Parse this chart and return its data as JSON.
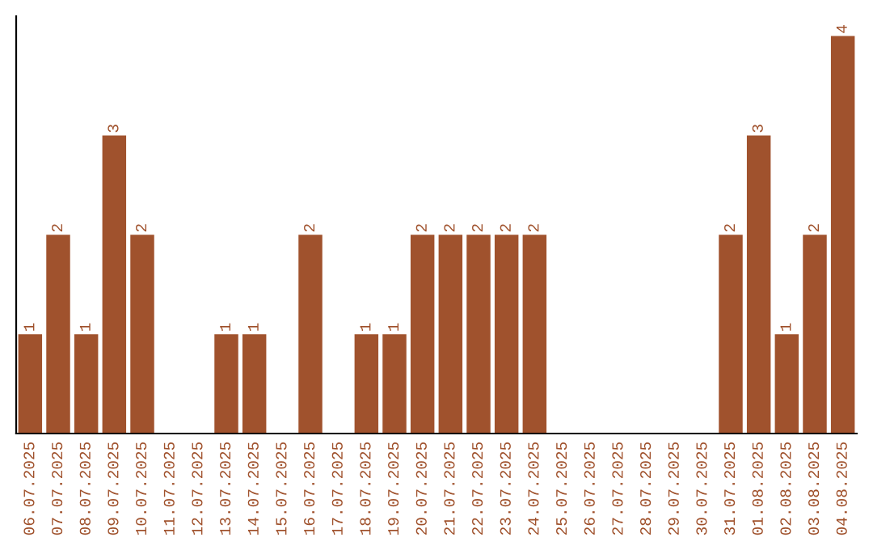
{
  "chart_data": {
    "type": "bar",
    "categories": [
      "06.07.2025",
      "07.07.2025",
      "08.07.2025",
      "09.07.2025",
      "10.07.2025",
      "11.07.2025",
      "12.07.2025",
      "13.07.2025",
      "14.07.2025",
      "15.07.2025",
      "16.07.2025",
      "17.07.2025",
      "18.07.2025",
      "19.07.2025",
      "20.07.2025",
      "21.07.2025",
      "22.07.2025",
      "23.07.2025",
      "24.07.2025",
      "25.07.2025",
      "26.07.2025",
      "27.07.2025",
      "28.07.2025",
      "29.07.2025",
      "30.07.2025",
      "31.07.2025",
      "01.08.2025",
      "02.08.2025",
      "03.08.2025",
      "04.08.2025"
    ],
    "values": [
      1,
      2,
      1,
      3,
      2,
      0,
      0,
      1,
      1,
      0,
      2,
      0,
      1,
      1,
      2,
      2,
      2,
      2,
      2,
      0,
      0,
      0,
      0,
      0,
      0,
      2,
      3,
      1,
      2,
      4
    ],
    "value_labels": [
      "1",
      "2",
      "1",
      "3",
      "2",
      null,
      null,
      "1",
      "1",
      null,
      "2",
      null,
      "1",
      "1",
      "2",
      "2",
      "2",
      "2",
      "2",
      null,
      null,
      null,
      null,
      null,
      null,
      "2",
      "3",
      "1",
      "2",
      "4"
    ],
    "color": "#a0522d",
    "ylim": [
      0,
      4.2
    ],
    "tick_labels": "x",
    "grid": false,
    "legend": false
  }
}
